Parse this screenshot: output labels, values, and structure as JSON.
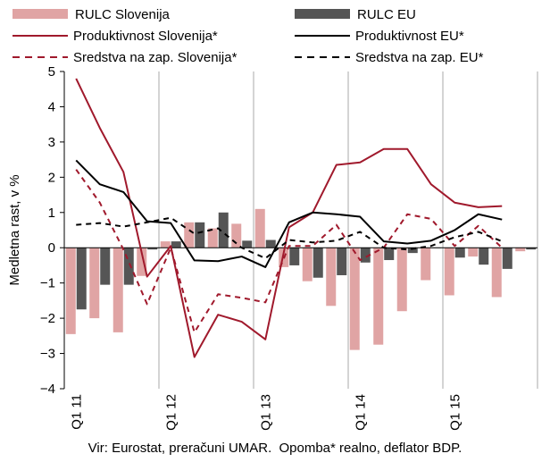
{
  "chart_data": {
    "type": "bar+line",
    "ylabel": "Medletna rast, v %",
    "ylim": [
      -4,
      5
    ],
    "yticks": [
      -4,
      -3,
      -2,
      -1,
      0,
      1,
      2,
      3,
      4,
      5
    ],
    "xtick_labels": [
      "Q1 11",
      "Q1 12",
      "Q1 13",
      "Q1 14",
      "Q1 15"
    ],
    "xtick_quarter_index": [
      0,
      4,
      8,
      12,
      16
    ],
    "grid": "vertical-at-year-start",
    "legend_position": "top, two columns",
    "periods": [
      "Q1 11",
      "Q2 11",
      "Q3 11",
      "Q4 11",
      "Q1 12",
      "Q2 12",
      "Q3 12",
      "Q4 12",
      "Q1 13",
      "Q2 13",
      "Q3 13",
      "Q4 13",
      "Q1 14",
      "Q2 14",
      "Q3 14",
      "Q4 14",
      "Q1 15",
      "Q2 15",
      "Q3 15",
      "Q4 15"
    ],
    "bar_series": [
      {
        "name": "RULC Slovenija",
        "color": "#e0a4a4",
        "values": [
          -2.45,
          -2.0,
          -2.4,
          -0.8,
          0.18,
          0.72,
          0.55,
          0.68,
          1.1,
          -0.55,
          -0.95,
          -1.65,
          -2.9,
          -2.75,
          -1.8,
          -0.92,
          -1.35,
          -0.25,
          -1.4,
          -0.1
        ]
      },
      {
        "name": "RULC EU",
        "color": "#555555",
        "values": [
          -1.75,
          -1.05,
          -1.05,
          -0.05,
          0.18,
          0.72,
          1.0,
          0.2,
          0.22,
          -0.5,
          -0.85,
          -0.78,
          -0.42,
          -0.35,
          -0.15,
          0.0,
          -0.28,
          -0.48,
          -0.6,
          -0.05
        ]
      }
    ],
    "line_series": [
      {
        "name": "Produktivnost Slovenija*",
        "color": "#a0192c",
        "dash": "solid",
        "values": [
          4.8,
          3.4,
          2.15,
          -0.82,
          0.05,
          -3.1,
          -1.9,
          -2.1,
          -2.6,
          0.58,
          1.0,
          2.35,
          2.42,
          2.8,
          2.8,
          1.8,
          1.28,
          1.15,
          1.18
        ]
      },
      {
        "name": "Produktivnost EU*",
        "color": "#000000",
        "dash": "solid",
        "values": [
          2.48,
          1.8,
          1.58,
          0.75,
          0.7,
          -0.36,
          -0.38,
          -0.25,
          -0.55,
          0.72,
          1.0,
          0.95,
          0.88,
          0.18,
          0.12,
          0.2,
          0.5,
          0.95,
          0.8
        ]
      },
      {
        "name": "Sredstva na zap. Slovenija*",
        "color": "#a0192c",
        "dash": "dashed",
        "values": [
          2.22,
          1.28,
          -0.05,
          -1.6,
          0.0,
          -2.4,
          -1.32,
          -1.42,
          -1.55,
          0.05,
          0.05,
          0.65,
          -0.35,
          0.0,
          0.95,
          0.82,
          0.05,
          0.62,
          0.0
        ]
      },
      {
        "name": "Sredstva na zap. EU*",
        "color": "#000000",
        "dash": "dashed",
        "values": [
          0.65,
          0.7,
          0.6,
          0.72,
          0.85,
          0.4,
          0.55,
          0.0,
          -0.3,
          0.22,
          0.15,
          0.2,
          0.45,
          0.0,
          -0.05,
          0.05,
          0.3,
          0.45,
          0.18
        ]
      }
    ]
  },
  "footer": {
    "source": "Vir: Eurostat, preračuni UMAR.",
    "note": "Opomba* realno, deflator BDP."
  }
}
